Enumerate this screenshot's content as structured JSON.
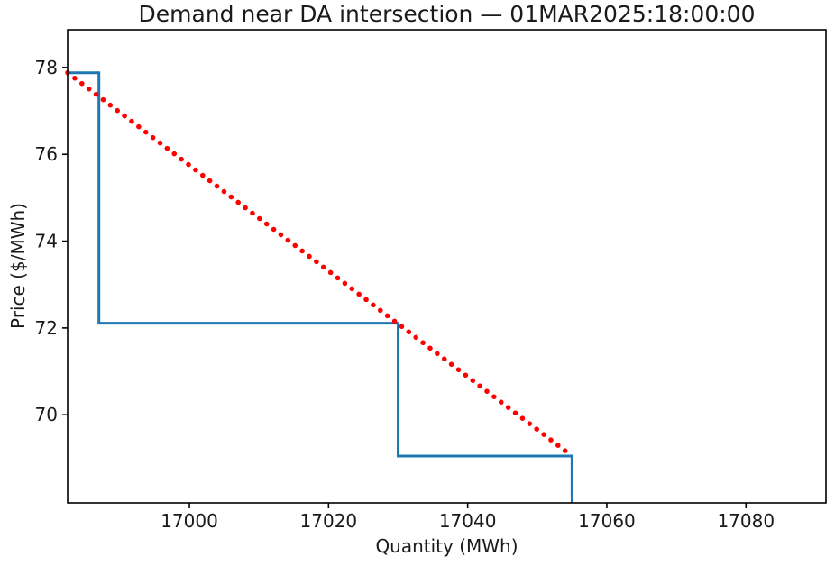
{
  "figure": {
    "background": "#ffffff"
  },
  "chart_data": {
    "type": "line",
    "title": "Demand near DA intersection — 01MAR2025:18:00:00",
    "xlabel": "Quantity (MWh)",
    "ylabel": "Price ($/MWh)",
    "xlim": [
      16982.5,
      17091.5
    ],
    "ylim": [
      67.97,
      78.87
    ],
    "xticks": [
      17000,
      17020,
      17040,
      17060,
      17080
    ],
    "yticks": [
      70,
      72,
      74,
      76,
      78
    ],
    "grid": false,
    "legend": "none",
    "axis_color": "#000000",
    "text_color": "#1a1a1a",
    "series": [
      {
        "name": "demand-step-curve",
        "style": "solid",
        "shape": "steps",
        "color": "#1f77b4",
        "line_width": 3,
        "points": [
          [
            16982.5,
            77.88
          ],
          [
            16987.0,
            77.88
          ],
          [
            16987.0,
            72.11
          ],
          [
            17030.0,
            72.11
          ],
          [
            17030.0,
            69.05
          ],
          [
            17055.0,
            69.05
          ],
          [
            17055.0,
            67.97
          ]
        ]
      },
      {
        "name": "da-dotted-line",
        "style": "dotted",
        "shape": "straight",
        "color": "#fe0000",
        "line_width": 5.5,
        "points": [
          [
            16982.5,
            77.88
          ],
          [
            17055.0,
            69.05
          ]
        ]
      }
    ]
  }
}
